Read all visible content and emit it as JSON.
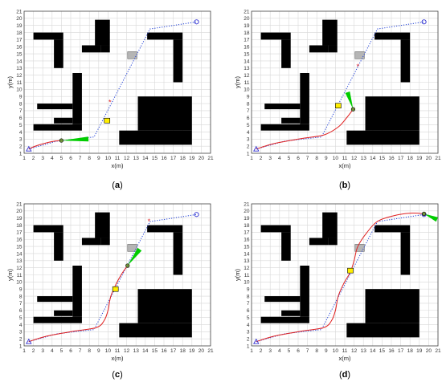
{
  "chart_data": [
    {
      "type": "scatter",
      "panel": "(a)",
      "caption_letter": "a",
      "xlabel": "x(m)",
      "ylabel": "y(m)",
      "xlim": [
        1,
        21
      ],
      "ylim": [
        1,
        21
      ],
      "xticks": [
        1,
        2,
        3,
        4,
        5,
        6,
        7,
        8,
        9,
        10,
        11,
        12,
        13,
        14,
        15,
        16,
        17,
        18,
        19,
        20,
        21
      ],
      "yticks": [
        1,
        2,
        3,
        4,
        5,
        6,
        7,
        8,
        9,
        10,
        11,
        12,
        13,
        14,
        15,
        16,
        17,
        18,
        19,
        20,
        21
      ],
      "grid": true,
      "start": {
        "x": 1.5,
        "y": 1.6
      },
      "goal": {
        "x": 19.5,
        "y": 19.5
      },
      "planned_path": {
        "x": [
          1.5,
          4.5,
          8.5,
          14.5,
          19.5
        ],
        "y": [
          1.6,
          2.7,
          3.3,
          18.5,
          19.5
        ]
      },
      "trajectory": {
        "x": [
          1.5,
          2.2,
          3.2,
          4.2,
          5.0
        ],
        "y": [
          1.6,
          2.0,
          2.4,
          2.7,
          2.8
        ]
      },
      "robot": {
        "x": 5.0,
        "y": 2.8
      },
      "target_marker": {
        "x": 10.2,
        "y": 8.2
      },
      "moving_obstacle": {
        "x": 9.9,
        "y": 5.6
      },
      "static_obstacle": {
        "x": 12.6,
        "y": 14.8
      },
      "heading_fan": {
        "x": [
          5.0,
          7.9
        ],
        "y": [
          2.8,
          3.0
        ]
      }
    },
    {
      "type": "scatter",
      "panel": "(b)",
      "caption_letter": "b",
      "xlabel": "x(m)",
      "ylabel": "y(m)",
      "xlim": [
        1,
        21
      ],
      "ylim": [
        1,
        21
      ],
      "xticks": [
        1,
        2,
        3,
        4,
        5,
        6,
        7,
        8,
        9,
        10,
        11,
        12,
        13,
        14,
        15,
        16,
        17,
        18,
        19,
        20,
        21
      ],
      "yticks": [
        1,
        2,
        3,
        4,
        5,
        6,
        7,
        8,
        9,
        10,
        11,
        12,
        13,
        14,
        15,
        16,
        17,
        18,
        19,
        20,
        21
      ],
      "grid": true,
      "start": {
        "x": 1.5,
        "y": 1.6
      },
      "goal": {
        "x": 19.5,
        "y": 19.5
      },
      "planned_path": {
        "x": [
          1.5,
          4.5,
          8.5,
          14.5,
          19.5
        ],
        "y": [
          1.6,
          2.7,
          3.3,
          18.5,
          19.5
        ]
      },
      "trajectory": {
        "x": [
          1.5,
          3.5,
          6.5,
          8.8,
          10.3,
          11.2,
          11.9
        ],
        "y": [
          1.6,
          2.4,
          3.1,
          3.6,
          4.7,
          6.0,
          7.2
        ]
      },
      "robot": {
        "x": 11.9,
        "y": 7.2
      },
      "target_marker": {
        "x": 12.4,
        "y": 13.2
      },
      "moving_obstacle": {
        "x": 10.3,
        "y": 7.7
      },
      "static_obstacle": {
        "x": 12.6,
        "y": 14.8
      },
      "heading_fan": {
        "x": [
          11.9,
          11.3
        ],
        "y": [
          7.2,
          9.6
        ]
      }
    },
    {
      "type": "scatter",
      "panel": "(c)",
      "caption_letter": "c",
      "xlabel": "x(m)",
      "ylabel": "y(m)",
      "xlim": [
        1,
        21
      ],
      "ylim": [
        1,
        21
      ],
      "xticks": [
        1,
        2,
        3,
        4,
        5,
        6,
        7,
        8,
        9,
        10,
        11,
        12,
        13,
        14,
        15,
        16,
        17,
        18,
        19,
        20,
        21
      ],
      "yticks": [
        1,
        2,
        3,
        4,
        5,
        6,
        7,
        8,
        9,
        10,
        11,
        12,
        13,
        14,
        15,
        16,
        17,
        18,
        19,
        20,
        21
      ],
      "grid": true,
      "start": {
        "x": 1.5,
        "y": 1.6
      },
      "goal": {
        "x": 19.5,
        "y": 19.5
      },
      "planned_path": {
        "x": [
          1.5,
          4.5,
          8.5,
          14.5,
          19.5
        ],
        "y": [
          1.6,
          2.7,
          3.3,
          18.5,
          19.5
        ]
      },
      "trajectory": {
        "x": [
          1.5,
          3.5,
          6.5,
          8.8,
          9.6,
          10.0,
          10.3,
          10.9,
          11.5,
          12.1
        ],
        "y": [
          1.6,
          2.4,
          3.1,
          3.6,
          4.6,
          6.0,
          8.0,
          9.8,
          11.2,
          12.3
        ]
      },
      "robot": {
        "x": 12.1,
        "y": 12.3
      },
      "target_marker": {
        "x": 14.4,
        "y": 18.5
      },
      "moving_obstacle": {
        "x": 10.8,
        "y": 9.0
      },
      "static_obstacle": {
        "x": 12.6,
        "y": 14.8
      },
      "heading_fan": {
        "x": [
          12.1,
          13.4
        ],
        "y": [
          12.3,
          14.6
        ]
      }
    },
    {
      "type": "scatter",
      "panel": "(d)",
      "caption_letter": "d",
      "xlabel": "x(m)",
      "ylabel": "y(m)",
      "xlim": [
        1,
        21
      ],
      "ylim": [
        1,
        21
      ],
      "xticks": [
        1,
        2,
        3,
        4,
        5,
        6,
        7,
        8,
        9,
        10,
        11,
        12,
        13,
        14,
        15,
        16,
        17,
        18,
        19,
        20,
        21
      ],
      "yticks": [
        1,
        2,
        3,
        4,
        5,
        6,
        7,
        8,
        9,
        10,
        11,
        12,
        13,
        14,
        15,
        16,
        17,
        18,
        19,
        20,
        21
      ],
      "grid": true,
      "start": {
        "x": 1.5,
        "y": 1.6
      },
      "goal": {
        "x": 19.5,
        "y": 19.5
      },
      "planned_path": {
        "x": [
          1.5,
          4.5,
          8.5,
          14.5,
          19.5
        ],
        "y": [
          1.6,
          2.7,
          3.3,
          18.5,
          19.5
        ]
      },
      "trajectory": {
        "x": [
          1.5,
          3.5,
          6.5,
          8.8,
          9.6,
          10.0,
          10.3,
          10.9,
          11.6,
          12.0,
          12.4,
          13.4,
          14.6,
          16.5,
          18.3,
          19.5
        ],
        "y": [
          1.6,
          2.4,
          3.1,
          3.6,
          4.6,
          6.0,
          8.0,
          9.8,
          11.4,
          13.0,
          15.0,
          17.0,
          18.6,
          19.4,
          19.7,
          19.6
        ]
      },
      "robot": {
        "x": 19.5,
        "y": 19.6
      },
      "target_marker": null,
      "moving_obstacle": {
        "x": 11.6,
        "y": 11.6
      },
      "static_obstacle": {
        "x": 12.6,
        "y": 14.8
      },
      "heading_fan": {
        "x": [
          19.5,
          20.9
        ],
        "y": [
          19.6,
          18.8
        ]
      }
    }
  ],
  "colors": {
    "obstacle": "#000000",
    "planned_path": "#1f3fd6",
    "trajectory": "#e02020",
    "robot_fill": "#6f8f3a",
    "start_marker": "#3030d0",
    "goal_marker": "#3030d0",
    "target_marker": "#e02020",
    "moving_obstacle": "#ffee00",
    "static_obstacle": "#b5b5b5",
    "heading_fan": "#00cc00",
    "grid": "#d8d8d8"
  }
}
